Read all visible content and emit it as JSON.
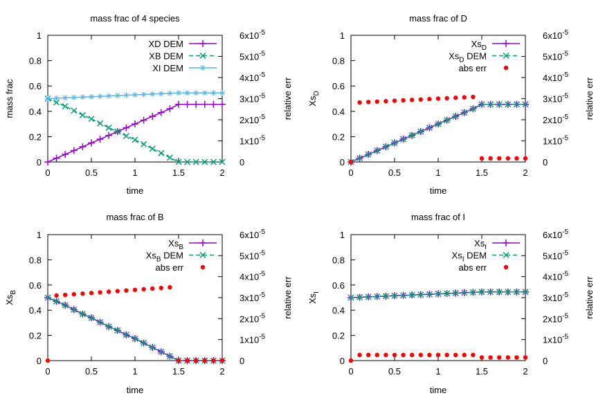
{
  "colors": {
    "purple": "#9400d3",
    "green": "#009e73",
    "lightblue": "#56b4e9",
    "red": "#ff0000"
  },
  "chart_data": [
    {
      "type": "line",
      "title": "mass frac of 4 species",
      "xlabel": "time",
      "ylabel": "mass frac",
      "y2label": "relative err",
      "xlim": [
        0,
        2
      ],
      "ylim": [
        0,
        1
      ],
      "y2lim": [
        0,
        6e-05
      ],
      "xticks": [
        "0",
        "0.5",
        "1",
        "1.5",
        "2"
      ],
      "yticks": [
        "0",
        "0.2",
        "0.4",
        "0.6",
        "0.8",
        "1"
      ],
      "y2ticks": [
        "0",
        "1x10",
        "2x10",
        "3x10",
        "4x10",
        "5x10",
        "6x10"
      ],
      "y2tick_exp": "-5",
      "legend": [
        {
          "label": "XD DEM",
          "style": "line-plus",
          "color": "#9400d3"
        },
        {
          "label": "XB DEM",
          "style": "dash-x",
          "color": "#009e73"
        },
        {
          "label": "XI DEM",
          "style": "line-star",
          "color": "#56b4e9"
        }
      ],
      "x": [
        0,
        0.1,
        0.2,
        0.3,
        0.4,
        0.5,
        0.6,
        0.7,
        0.8,
        0.9,
        1.0,
        1.1,
        1.2,
        1.3,
        1.4,
        1.5,
        1.6,
        1.7,
        1.8,
        1.9,
        2.0
      ],
      "series": [
        {
          "name": "XD DEM",
          "values": [
            0,
            0.03,
            0.06,
            0.09,
            0.12,
            0.15,
            0.18,
            0.21,
            0.24,
            0.27,
            0.3,
            0.33,
            0.36,
            0.39,
            0.42,
            0.455,
            0.455,
            0.455,
            0.455,
            0.455,
            0.455
          ]
        },
        {
          "name": "XB DEM",
          "values": [
            0.5,
            0.47,
            0.44,
            0.405,
            0.37,
            0.34,
            0.305,
            0.27,
            0.24,
            0.205,
            0.175,
            0.14,
            0.105,
            0.07,
            0.035,
            0,
            0,
            0,
            0,
            0,
            0
          ]
        },
        {
          "name": "XI DEM",
          "values": [
            0.5,
            0.503,
            0.506,
            0.509,
            0.512,
            0.515,
            0.518,
            0.521,
            0.524,
            0.527,
            0.53,
            0.533,
            0.536,
            0.539,
            0.542,
            0.545,
            0.545,
            0.545,
            0.545,
            0.545,
            0.545
          ]
        }
      ]
    },
    {
      "type": "line",
      "title": "mass frac of D",
      "xlabel": "time",
      "ylabel_main": "Xs",
      "ylabel_sub": "D",
      "y2label": "relative err",
      "xlim": [
        0,
        2
      ],
      "ylim": [
        0,
        1
      ],
      "y2lim": [
        0,
        6e-05
      ],
      "xticks": [
        "0",
        "0.5",
        "1",
        "1.5",
        "2"
      ],
      "yticks": [
        "0",
        "0.2",
        "0.4",
        "0.6",
        "0.8",
        "1"
      ],
      "y2ticks": [
        "0",
        "1x10",
        "2x10",
        "3x10",
        "4x10",
        "5x10",
        "6x10"
      ],
      "y2tick_exp": "-5",
      "legend": [
        {
          "main": "Xs",
          "sub": "D",
          "suffix": "",
          "style": "line-plus",
          "color": "#9400d3"
        },
        {
          "main": "Xs",
          "sub": "D",
          "suffix": " DEM",
          "style": "dash-x",
          "color": "#009e73"
        },
        {
          "main": "abs err",
          "sub": "",
          "suffix": "",
          "style": "dot",
          "color": "#ff0000"
        }
      ],
      "x": [
        0,
        0.1,
        0.2,
        0.3,
        0.4,
        0.5,
        0.6,
        0.7,
        0.8,
        0.9,
        1.0,
        1.1,
        1.2,
        1.3,
        1.4,
        1.5,
        1.6,
        1.7,
        1.8,
        1.9,
        2.0
      ],
      "series": [
        {
          "name": "XsD",
          "values": [
            0,
            0.03,
            0.06,
            0.09,
            0.12,
            0.15,
            0.18,
            0.21,
            0.24,
            0.27,
            0.3,
            0.33,
            0.36,
            0.39,
            0.42,
            0.455,
            0.455,
            0.455,
            0.455,
            0.455,
            0.455
          ]
        },
        {
          "name": "XsD DEM",
          "values": [
            0,
            0.03,
            0.06,
            0.09,
            0.12,
            0.15,
            0.18,
            0.21,
            0.24,
            0.27,
            0.3,
            0.33,
            0.36,
            0.39,
            0.42,
            0.455,
            0.455,
            0.455,
            0.455,
            0.455,
            0.455
          ]
        }
      ],
      "err_axis": "y2",
      "err": [
        0,
        2.82e-05,
        2.84e-05,
        2.86e-05,
        2.88e-05,
        2.9e-05,
        2.92e-05,
        2.94e-05,
        2.96e-05,
        2.98e-05,
        3e-05,
        3.02e-05,
        3.04e-05,
        3.06e-05,
        3.08e-05,
        1.7e-06,
        1.7e-06,
        1.7e-06,
        1.7e-06,
        1.7e-06,
        1.7e-06
      ]
    },
    {
      "type": "line",
      "title": "mass frac of B",
      "xlabel": "time",
      "ylabel_main": "Xs",
      "ylabel_sub": "B",
      "y2label": "relative err",
      "xlim": [
        0,
        2
      ],
      "ylim": [
        0,
        1
      ],
      "y2lim": [
        0,
        6e-05
      ],
      "xticks": [
        "0",
        "0.5",
        "1",
        "1.5",
        "2"
      ],
      "yticks": [
        "0",
        "0.2",
        "0.4",
        "0.6",
        "0.8",
        "1"
      ],
      "y2ticks": [
        "0",
        "1x10",
        "2x10",
        "3x10",
        "4x10",
        "5x10",
        "6x10"
      ],
      "y2tick_exp": "-5",
      "legend": [
        {
          "main": "Xs",
          "sub": "B",
          "suffix": "",
          "style": "line-plus",
          "color": "#9400d3"
        },
        {
          "main": "Xs",
          "sub": "B",
          "suffix": " DEM",
          "style": "dash-x",
          "color": "#009e73"
        },
        {
          "main": "abs err",
          "sub": "",
          "suffix": "",
          "style": "dot",
          "color": "#ff0000"
        }
      ],
      "x": [
        0,
        0.1,
        0.2,
        0.3,
        0.4,
        0.5,
        0.6,
        0.7,
        0.8,
        0.9,
        1.0,
        1.1,
        1.2,
        1.3,
        1.4,
        1.5,
        1.6,
        1.7,
        1.8,
        1.9,
        2.0
      ],
      "series": [
        {
          "name": "XsB",
          "values": [
            0.5,
            0.47,
            0.44,
            0.405,
            0.37,
            0.34,
            0.305,
            0.27,
            0.24,
            0.205,
            0.175,
            0.14,
            0.105,
            0.07,
            0.035,
            0,
            0,
            0,
            0,
            0,
            0
          ]
        },
        {
          "name": "XsB DEM",
          "values": [
            0.5,
            0.47,
            0.44,
            0.405,
            0.37,
            0.34,
            0.305,
            0.27,
            0.24,
            0.205,
            0.175,
            0.14,
            0.105,
            0.07,
            0.035,
            0,
            0,
            0,
            0,
            0,
            0
          ]
        }
      ],
      "err_axis": "y2",
      "err": [
        0,
        3.1e-05,
        3.13e-05,
        3.16e-05,
        3.19e-05,
        3.22e-05,
        3.25e-05,
        3.28e-05,
        3.31e-05,
        3.34e-05,
        3.37e-05,
        3.4e-05,
        3.43e-05,
        3.46e-05,
        3.49e-05,
        0,
        0,
        0,
        0,
        0,
        0
      ]
    },
    {
      "type": "line",
      "title": "mass frac of I",
      "xlabel": "time",
      "ylabel_main": "Xs",
      "ylabel_sub": "I",
      "y2label": "relative err",
      "xlim": [
        0,
        2
      ],
      "ylim": [
        0,
        1
      ],
      "y2lim": [
        0,
        6e-05
      ],
      "xticks": [
        "0",
        "0.5",
        "1",
        "1.5",
        "2"
      ],
      "yticks": [
        "0",
        "0.2",
        "0.4",
        "0.6",
        "0.8",
        "1"
      ],
      "y2ticks": [
        "0",
        "1x10",
        "2x10",
        "3x10",
        "4x10",
        "5x10",
        "6x10"
      ],
      "y2tick_exp": "-5",
      "legend": [
        {
          "main": "Xs",
          "sub": "I",
          "suffix": "",
          "style": "line-plus",
          "color": "#9400d3"
        },
        {
          "main": "Xs",
          "sub": "I",
          "suffix": " DEM",
          "style": "dash-x",
          "color": "#009e73"
        },
        {
          "main": "abs err",
          "sub": "",
          "suffix": "",
          "style": "dot",
          "color": "#ff0000"
        }
      ],
      "x": [
        0,
        0.1,
        0.2,
        0.3,
        0.4,
        0.5,
        0.6,
        0.7,
        0.8,
        0.9,
        1.0,
        1.1,
        1.2,
        1.3,
        1.4,
        1.5,
        1.6,
        1.7,
        1.8,
        1.9,
        2.0
      ],
      "series": [
        {
          "name": "XsI",
          "values": [
            0.5,
            0.503,
            0.506,
            0.509,
            0.512,
            0.515,
            0.518,
            0.521,
            0.524,
            0.527,
            0.53,
            0.533,
            0.536,
            0.539,
            0.542,
            0.545,
            0.545,
            0.545,
            0.545,
            0.545,
            0.545
          ]
        },
        {
          "name": "XsI DEM",
          "values": [
            0.5,
            0.503,
            0.506,
            0.509,
            0.512,
            0.515,
            0.518,
            0.521,
            0.524,
            0.527,
            0.53,
            0.533,
            0.536,
            0.539,
            0.542,
            0.545,
            0.545,
            0.545,
            0.545,
            0.545,
            0.545
          ]
        }
      ],
      "err_axis": "y2",
      "err": [
        0,
        2.7e-06,
        2.7e-06,
        2.7e-06,
        2.7e-06,
        2.7e-06,
        2.7e-06,
        2.7e-06,
        2.7e-06,
        2.7e-06,
        2.7e-06,
        2.7e-06,
        2.7e-06,
        2.7e-06,
        2.7e-06,
        1.5e-06,
        1.5e-06,
        1.5e-06,
        1.5e-06,
        1.5e-06,
        1.5e-06
      ]
    }
  ]
}
